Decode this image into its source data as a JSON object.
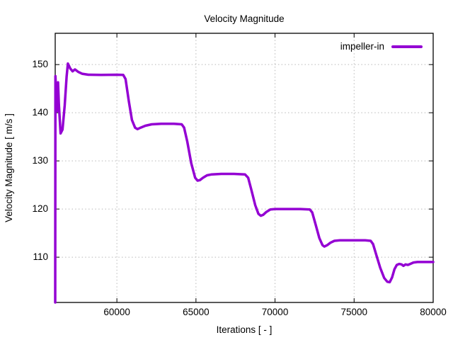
{
  "figure": {
    "background": "#ffffff",
    "text_color": "#000000",
    "grid_color": "#b8b8b8",
    "border_color": "#000000"
  },
  "chart_data": {
    "type": "line",
    "title": "Velocity Magnitude",
    "xlabel": "Iterations [ - ]",
    "ylabel": "Velocity Magnitude [ m/s ]",
    "grid": true,
    "legend_position": "top-right",
    "xlim": [
      56100,
      80000
    ],
    "ylim": [
      100.6,
      156.5
    ],
    "x_ticks": [
      60000,
      65000,
      70000,
      75000,
      80000
    ],
    "y_ticks": [
      110,
      120,
      130,
      140,
      150
    ],
    "series": [
      {
        "name": "impeller-in",
        "color": "#9400d3",
        "line_width": 3.5,
        "points": [
          [
            56100,
            100.6
          ],
          [
            56115,
            147.6
          ],
          [
            56150,
            144.8
          ],
          [
            56210,
            140.3
          ],
          [
            56280,
            146.3
          ],
          [
            56330,
            142.0
          ],
          [
            56440,
            135.7
          ],
          [
            56560,
            136.5
          ],
          [
            56700,
            141.5
          ],
          [
            56820,
            147.5
          ],
          [
            56900,
            150.2
          ],
          [
            56990,
            149.6
          ],
          [
            57050,
            149.2
          ],
          [
            57200,
            148.6
          ],
          [
            57350,
            149.0
          ],
          [
            57550,
            148.5
          ],
          [
            57800,
            148.1
          ],
          [
            58200,
            147.9
          ],
          [
            59000,
            147.85
          ],
          [
            60000,
            147.9
          ],
          [
            60400,
            147.85
          ],
          [
            60550,
            147.0
          ],
          [
            60750,
            142.5
          ],
          [
            60950,
            138.5
          ],
          [
            61150,
            136.9
          ],
          [
            61300,
            136.6
          ],
          [
            61500,
            136.9
          ],
          [
            61800,
            137.3
          ],
          [
            62200,
            137.6
          ],
          [
            62800,
            137.7
          ],
          [
            63600,
            137.7
          ],
          [
            64100,
            137.6
          ],
          [
            64250,
            136.9
          ],
          [
            64450,
            134.0
          ],
          [
            64700,
            129.5
          ],
          [
            64950,
            126.5
          ],
          [
            65100,
            125.9
          ],
          [
            65250,
            126.0
          ],
          [
            65450,
            126.5
          ],
          [
            65700,
            127.0
          ],
          [
            66000,
            127.2
          ],
          [
            66600,
            127.3
          ],
          [
            67400,
            127.3
          ],
          [
            68100,
            127.2
          ],
          [
            68300,
            126.5
          ],
          [
            68500,
            124.0
          ],
          [
            68750,
            120.8
          ],
          [
            68950,
            119.0
          ],
          [
            69100,
            118.6
          ],
          [
            69250,
            118.8
          ],
          [
            69450,
            119.4
          ],
          [
            69700,
            119.9
          ],
          [
            70000,
            120.0
          ],
          [
            70800,
            120.0
          ],
          [
            71600,
            120.0
          ],
          [
            72200,
            119.9
          ],
          [
            72350,
            119.3
          ],
          [
            72550,
            117.0
          ],
          [
            72800,
            114.0
          ],
          [
            73000,
            112.5
          ],
          [
            73120,
            112.2
          ],
          [
            73300,
            112.5
          ],
          [
            73500,
            113.0
          ],
          [
            73750,
            113.4
          ],
          [
            74100,
            113.5
          ],
          [
            74900,
            113.5
          ],
          [
            75700,
            113.5
          ],
          [
            76050,
            113.4
          ],
          [
            76200,
            112.7
          ],
          [
            76400,
            110.5
          ],
          [
            76650,
            107.8
          ],
          [
            76900,
            105.7
          ],
          [
            77100,
            104.9
          ],
          [
            77250,
            104.8
          ],
          [
            77400,
            105.8
          ],
          [
            77550,
            107.5
          ],
          [
            77700,
            108.4
          ],
          [
            77850,
            108.6
          ],
          [
            78000,
            108.5
          ],
          [
            78120,
            108.2
          ],
          [
            78250,
            108.5
          ],
          [
            78400,
            108.4
          ],
          [
            78550,
            108.6
          ],
          [
            78750,
            108.9
          ],
          [
            79000,
            109.0
          ],
          [
            79500,
            109.0
          ],
          [
            80000,
            109.0
          ]
        ]
      }
    ]
  }
}
